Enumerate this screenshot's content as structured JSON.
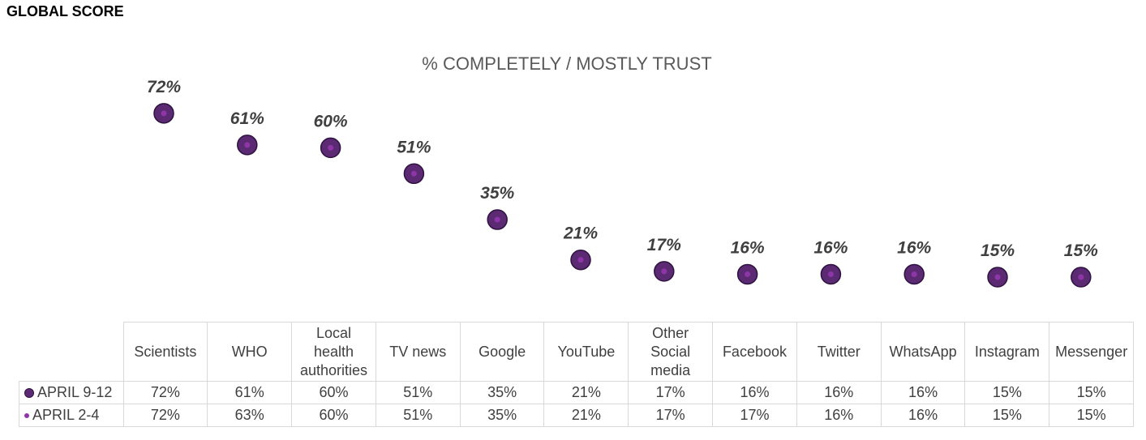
{
  "header": "GLOBAL SCORE",
  "chart_data": {
    "type": "scatter",
    "title": "% COMPLETELY / MOSTLY TRUST",
    "categories": [
      "Scientists",
      "WHO",
      "Local health authorities",
      "TV news",
      "Google",
      "YouTube",
      "Other Social media",
      "Facebook",
      "Twitter",
      "WhatsApp",
      "Instagram",
      "Messenger"
    ],
    "category_lines": [
      [
        "Scientists"
      ],
      [
        "WHO"
      ],
      [
        "Local",
        "health",
        "authorities"
      ],
      [
        "TV news"
      ],
      [
        "Google"
      ],
      [
        "YouTube"
      ],
      [
        "Other",
        "Social",
        "media"
      ],
      [
        "Facebook"
      ],
      [
        "Twitter"
      ],
      [
        "WhatsApp"
      ],
      [
        "Instagram"
      ],
      [
        "Messenger"
      ]
    ],
    "series": [
      {
        "name": "APRIL 9-12",
        "values": [
          72,
          61,
          60,
          51,
          35,
          21,
          17,
          16,
          16,
          16,
          15,
          15
        ],
        "color": "#5b2a73"
      },
      {
        "name": "APRIL 2-4",
        "values": [
          72,
          63,
          60,
          51,
          35,
          21,
          17,
          17,
          16,
          16,
          15,
          15
        ],
        "color": "#8e35a8"
      }
    ],
    "data_labels": [
      "72%",
      "61%",
      "60%",
      "51%",
      "35%",
      "21%",
      "17%",
      "16%",
      "16%",
      "16%",
      "15%",
      "15%"
    ],
    "table_values": [
      [
        "72%",
        "61%",
        "60%",
        "51%",
        "35%",
        "21%",
        "17%",
        "16%",
        "16%",
        "16%",
        "15%",
        "15%"
      ],
      [
        "72%",
        "63%",
        "60%",
        "51%",
        "35%",
        "21%",
        "17%",
        "17%",
        "16%",
        "16%",
        "15%",
        "15%"
      ]
    ],
    "legend_position": "data-table"
  }
}
